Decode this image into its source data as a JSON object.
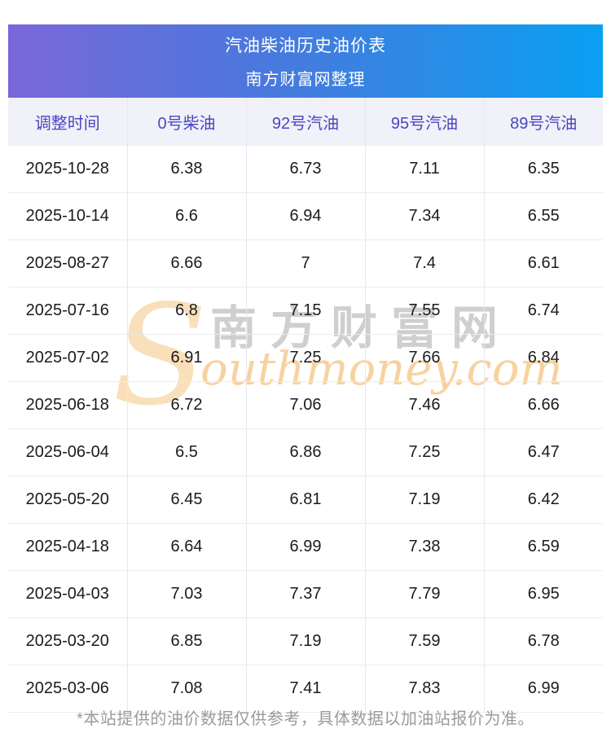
{
  "page": {
    "banner": {
      "title": "汽油柴油历史油价表",
      "subtitle": "南方财富网整理",
      "gradient_from": "#7a67d9",
      "gradient_to": "#09a0f1"
    },
    "watermark": {
      "initial": "S",
      "cn_text": "南方财富网",
      "en_text": "outhmoney.com",
      "orange_color": "#f7d2a0",
      "gray_color": "#c7c7c7"
    },
    "footer_note": "*本站提供的油价数据仅供参考，具体数据以加油站报价为准。"
  },
  "chart_data": {
    "type": "table",
    "title": "汽油柴油历史油价表",
    "subtitle": "南方财富网整理",
    "columns": [
      "调整时间",
      "0号柴油",
      "92号汽油",
      "95号汽油",
      "89号汽油"
    ],
    "rows": [
      [
        "2025-10-28",
        "6.38",
        "6.73",
        "7.11",
        "6.35"
      ],
      [
        "2025-10-14",
        "6.6",
        "6.94",
        "7.34",
        "6.55"
      ],
      [
        "2025-08-27",
        "6.66",
        "7",
        "7.4",
        "6.61"
      ],
      [
        "2025-07-16",
        "6.8",
        "7.15",
        "7.55",
        "6.74"
      ],
      [
        "2025-07-02",
        "6.91",
        "7.25",
        "7.66",
        "6.84"
      ],
      [
        "2025-06-18",
        "6.72",
        "7.06",
        "7.46",
        "6.66"
      ],
      [
        "2025-06-04",
        "6.5",
        "6.86",
        "7.25",
        "6.47"
      ],
      [
        "2025-05-20",
        "6.45",
        "6.81",
        "7.19",
        "6.42"
      ],
      [
        "2025-04-18",
        "6.64",
        "6.99",
        "7.38",
        "6.59"
      ],
      [
        "2025-04-03",
        "7.03",
        "7.37",
        "7.79",
        "6.95"
      ],
      [
        "2025-03-20",
        "6.85",
        "7.19",
        "7.59",
        "6.78"
      ],
      [
        "2025-03-06",
        "7.08",
        "7.41",
        "7.83",
        "6.99"
      ]
    ],
    "header_bg": "#f1f1fa",
    "header_text_color": "#4a47c0",
    "grid": true,
    "legend_position": "none"
  }
}
